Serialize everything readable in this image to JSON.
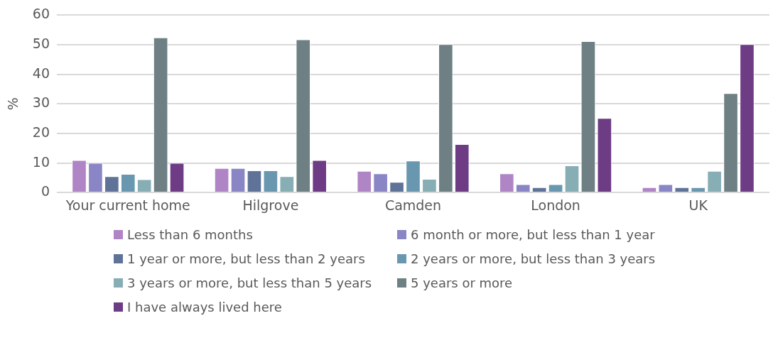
{
  "chart_data": {
    "type": "bar",
    "ylabel": "%",
    "categories": [
      "Your current home",
      "Hilgrove",
      "Camden",
      "London",
      "UK"
    ],
    "series": [
      {
        "name": "Less than 6 months",
        "color": "#b085c5",
        "values": [
          11,
          8.3,
          7.3,
          6.5,
          1.8
        ]
      },
      {
        "name": "6 month or more, but less than 1 year",
        "color": "#8a86c6",
        "values": [
          10,
          8.3,
          6.5,
          2.8,
          2.8
        ]
      },
      {
        "name": "1 year or more, but less than 2 years",
        "color": "#5f7399",
        "values": [
          5.5,
          7.5,
          3.6,
          1.8,
          1.8
        ]
      },
      {
        "name": "2 years or more, but less than 3 years",
        "color": "#6a97b0",
        "values": [
          6.3,
          7.5,
          10.8,
          2.8,
          1.8
        ]
      },
      {
        "name": "3 years or more, but less than 5 years",
        "color": "#87adb5",
        "values": [
          4.5,
          5.5,
          4.6,
          9.2,
          7.3
        ]
      },
      {
        "name": "5 years or more",
        "color": "#6e8083",
        "values": [
          52.5,
          51.8,
          50.2,
          51.2,
          33.6
        ]
      },
      {
        "name": "I have always lived here",
        "color": "#6d3c85",
        "values": [
          10,
          11,
          16.4,
          25.2,
          50.2
        ]
      }
    ],
    "ylim": [
      0,
      60
    ],
    "yticks": [
      0,
      10,
      20,
      30,
      40,
      50,
      60
    ],
    "grid": "y",
    "legend": "bottom"
  }
}
